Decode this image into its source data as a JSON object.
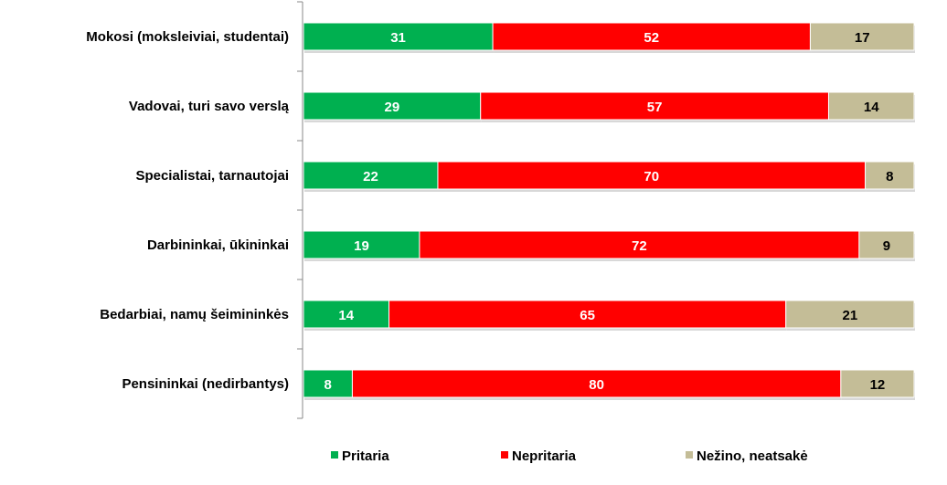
{
  "chart_data": {
    "type": "bar",
    "orientation": "horizontal",
    "stacked": true,
    "title": "",
    "xlabel": "",
    "ylabel": "",
    "xlim": [
      0,
      100
    ],
    "grid": false,
    "legend_position": "bottom",
    "categories": [
      "Mokosi (moksleiviai, studentai)",
      "Vadovai, turi savo verslą",
      "Specialistai, tarnautojai",
      "Darbininkai, ūkininkai",
      "Bedarbiai, namų šeimininkės",
      "Pensininkai (nedirbantys)"
    ],
    "series": [
      {
        "name": "Pritaria",
        "color": "#00B050",
        "label_color": "#FFFFFF",
        "values": [
          31,
          29,
          22,
          19,
          14,
          8
        ]
      },
      {
        "name": "Nepritaria",
        "color": "#FF0000",
        "label_color": "#FFFFFF",
        "values": [
          52,
          57,
          70,
          72,
          65,
          80
        ]
      },
      {
        "name": "Nežino, neatsakė",
        "color": "#C4BD97",
        "label_color": "#000000",
        "values": [
          17,
          14,
          8,
          9,
          21,
          12
        ]
      }
    ]
  }
}
